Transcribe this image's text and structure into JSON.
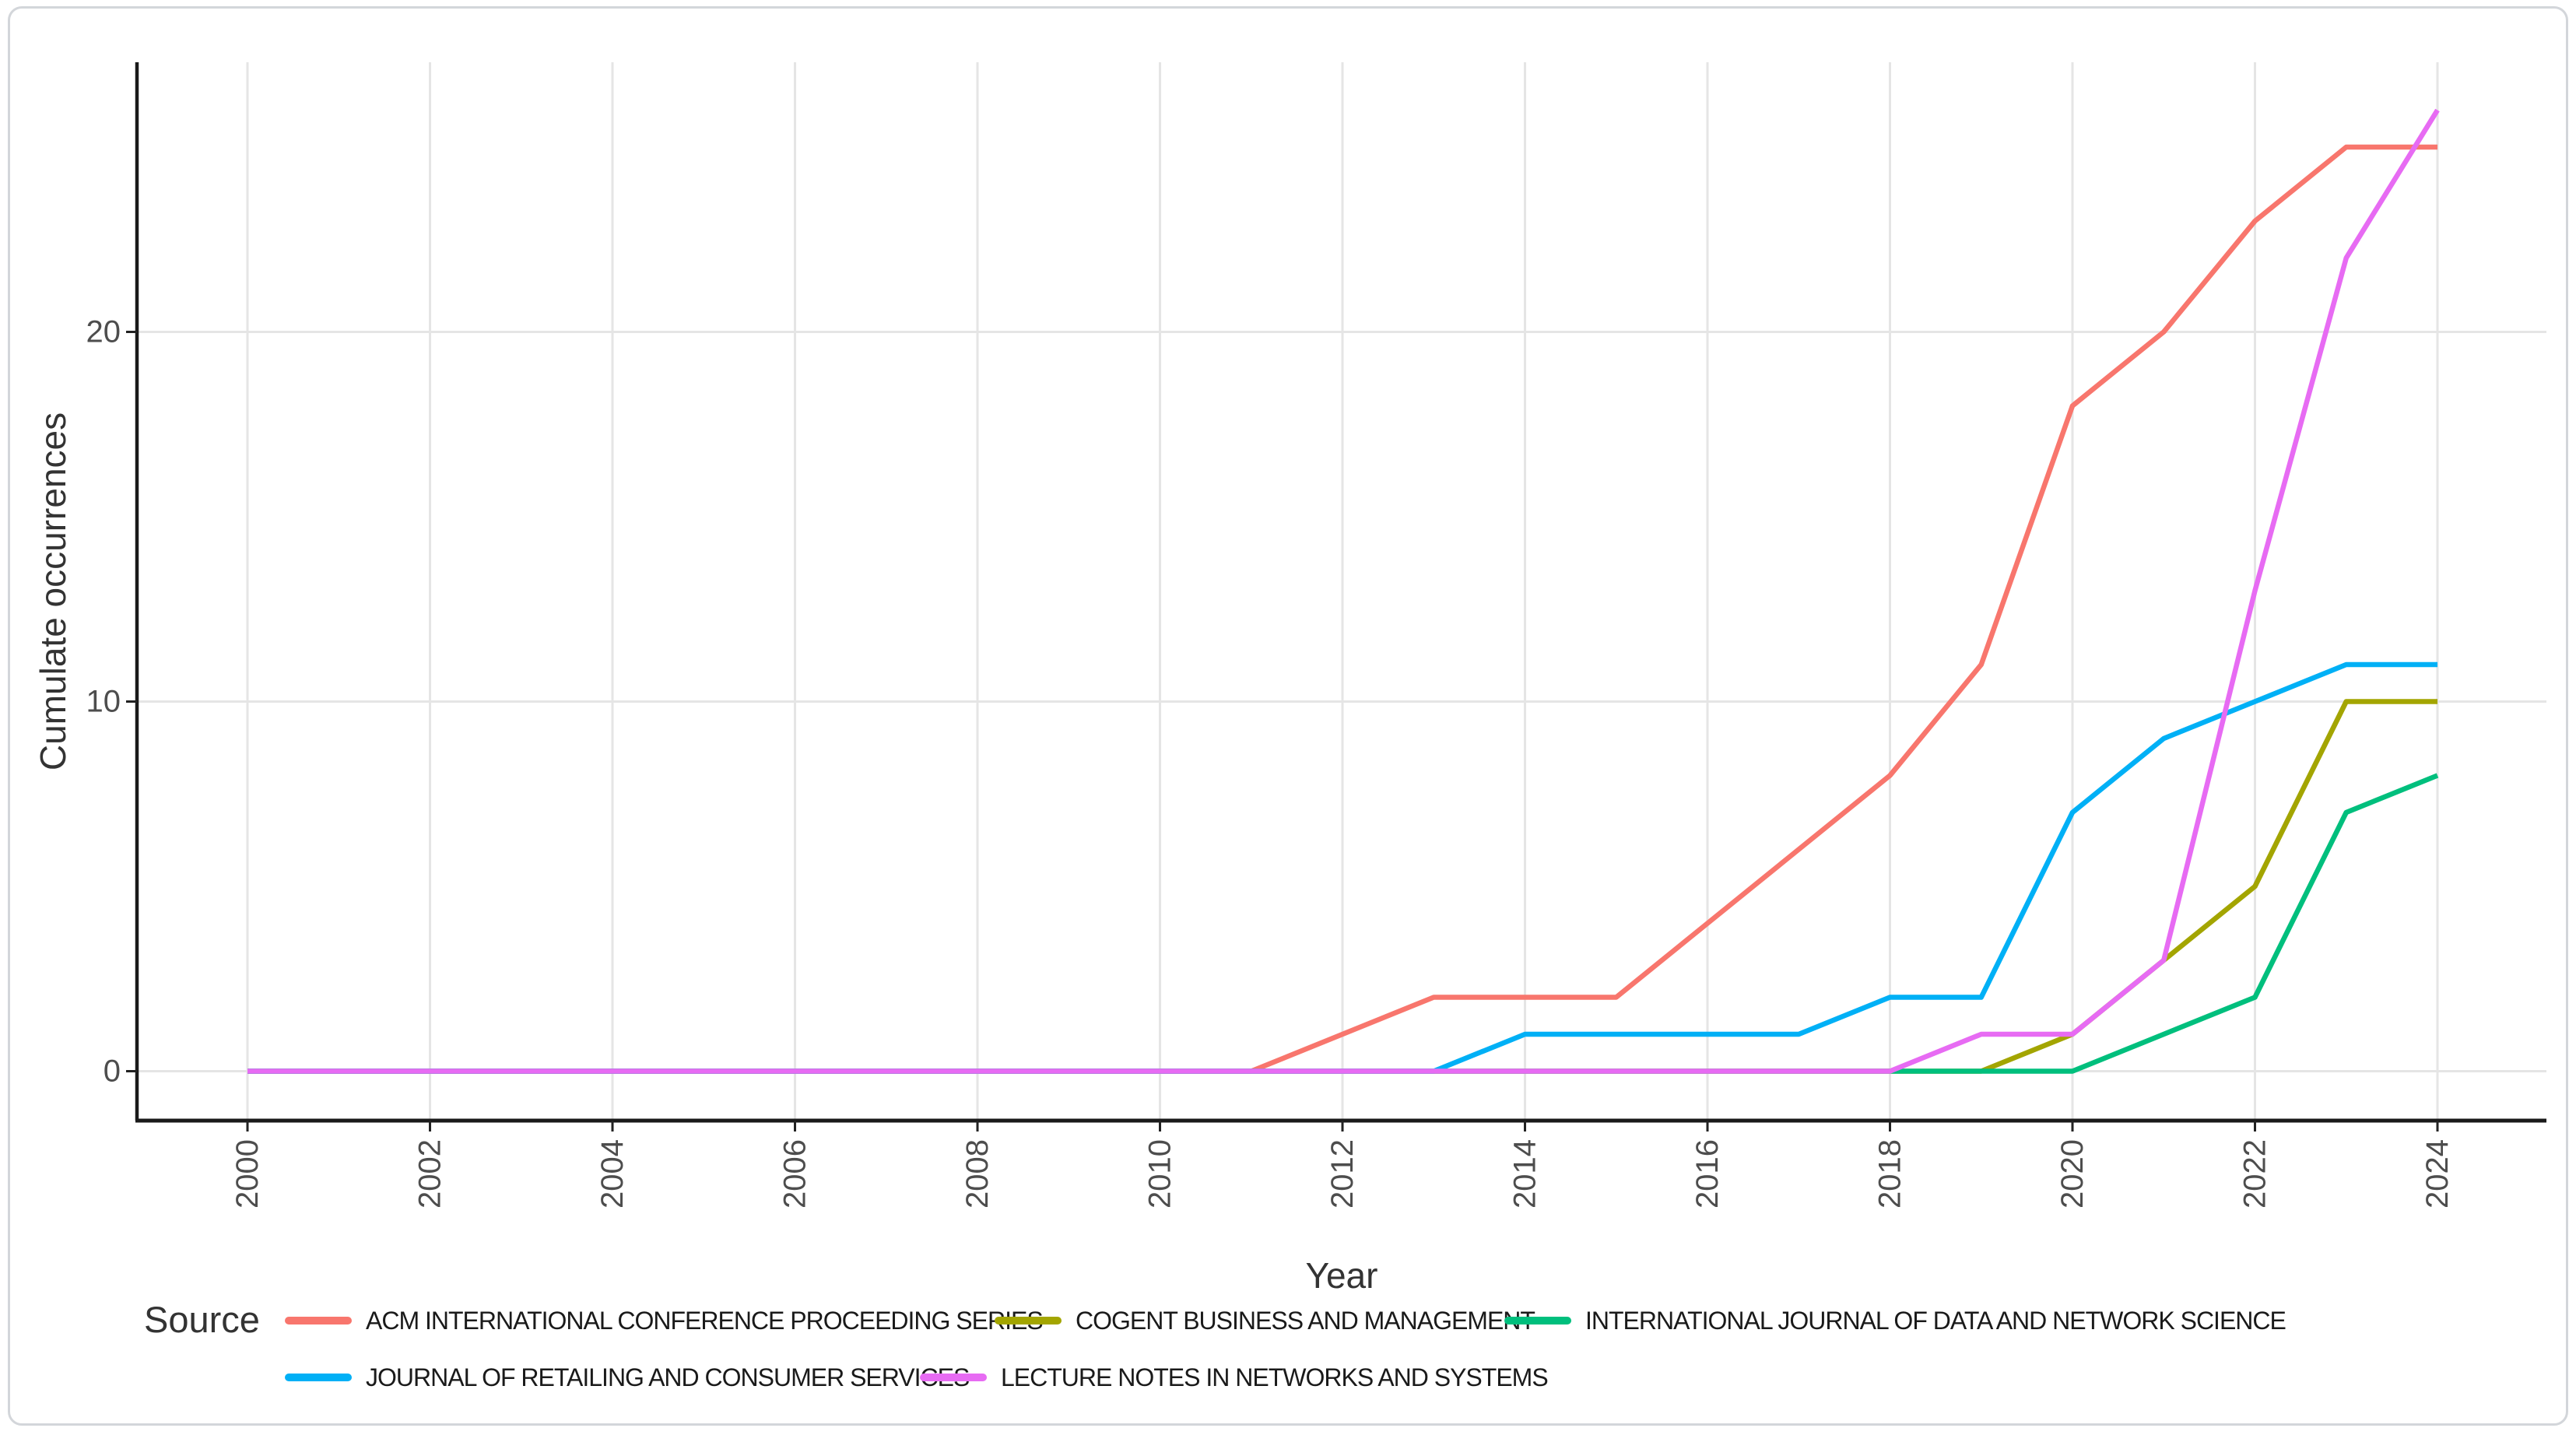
{
  "chart_data": {
    "type": "line",
    "title": "",
    "xlabel": "Year",
    "ylabel": "Cumulate occurrences",
    "legend_title": "Source",
    "legend_position": "bottom",
    "grid": "major-only",
    "background_color": "#ffffff",
    "gridline_color": "#e5e5e5",
    "axis_color": "#1a1a1a",
    "tick_color": "#222222",
    "tick_label_color": "#4d4d4d",
    "axis_title_color": "#333333",
    "legend_text_color": "#1a1a1a",
    "x_range": [
      2000,
      2024
    ],
    "ylim": [
      0,
      27.3
    ],
    "x_ticks": [
      2000,
      2002,
      2004,
      2006,
      2008,
      2010,
      2012,
      2014,
      2016,
      2018,
      2020,
      2022,
      2024
    ],
    "y_ticks": [
      0,
      10,
      20
    ],
    "years": [
      2000,
      2001,
      2002,
      2003,
      2004,
      2005,
      2006,
      2007,
      2008,
      2009,
      2010,
      2011,
      2012,
      2013,
      2014,
      2015,
      2016,
      2017,
      2018,
      2019,
      2020,
      2021,
      2022,
      2023,
      2024
    ],
    "series": [
      {
        "name": "ACM INTERNATIONAL CONFERENCE PROCEEDING SERIES",
        "color": "#F8766D",
        "values": [
          0,
          0,
          0,
          0,
          0,
          0,
          0,
          0,
          0,
          0,
          0,
          0,
          1,
          2,
          2,
          2,
          4,
          6,
          8,
          11,
          18,
          20,
          23,
          25,
          25
        ]
      },
      {
        "name": "COGENT BUSINESS AND MANAGEMENT",
        "color": "#A3A500",
        "values": [
          0,
          0,
          0,
          0,
          0,
          0,
          0,
          0,
          0,
          0,
          0,
          0,
          0,
          0,
          0,
          0,
          0,
          0,
          0,
          0,
          1,
          3,
          5,
          10,
          10
        ]
      },
      {
        "name": "INTERNATIONAL JOURNAL OF DATA AND NETWORK SCIENCE",
        "color": "#00BF7D",
        "values": [
          0,
          0,
          0,
          0,
          0,
          0,
          0,
          0,
          0,
          0,
          0,
          0,
          0,
          0,
          0,
          0,
          0,
          0,
          0,
          0,
          0,
          1,
          2,
          7,
          8
        ]
      },
      {
        "name": "JOURNAL OF RETAILING AND CONSUMER SERVICES",
        "color": "#00B0F6",
        "values": [
          0,
          0,
          0,
          0,
          0,
          0,
          0,
          0,
          0,
          0,
          0,
          0,
          0,
          0,
          1,
          1,
          1,
          1,
          2,
          2,
          7,
          9,
          10,
          11,
          11
        ]
      },
      {
        "name": "LECTURE NOTES IN NETWORKS AND SYSTEMS",
        "color": "#E76BF3",
        "values": [
          0,
          0,
          0,
          0,
          0,
          0,
          0,
          0,
          0,
          0,
          0,
          0,
          0,
          0,
          0,
          0,
          0,
          0,
          0,
          1,
          1,
          3,
          13,
          22,
          26
        ]
      }
    ]
  }
}
